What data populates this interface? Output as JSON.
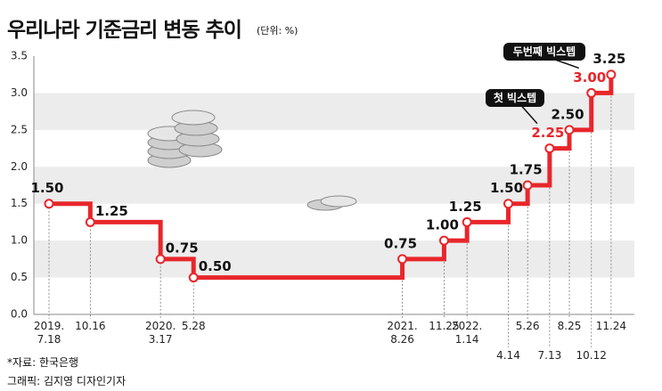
{
  "chart_data": {
    "type": "step-line",
    "title": "우리나라 기준금리 변동 추이",
    "subtitle": "(단위: %)",
    "source": "*자료: 한국은행",
    "credit": "그래픽: 김지영 디자인기자",
    "x": [
      "2019.\n7.18",
      "10.16",
      "2020.\n3.17",
      "5.28",
      "2021.\n8.26",
      "11.25",
      "2022.\n1.14",
      "4.14",
      "5.26",
      "7.13",
      "8.25",
      "10.12",
      "11.24"
    ],
    "series": [
      {
        "color": "#e8262b",
        "values": [
          1.5,
          1.25,
          0.75,
          0.5,
          0.75,
          1.0,
          1.25,
          1.5,
          1.75,
          2.25,
          2.5,
          3.0,
          3.25
        ],
        "value_labels": [
          "1.50",
          "1.25",
          "0.75",
          "0.50",
          "0.75",
          "1.00",
          "1.25",
          "1.50",
          "1.75",
          "2.25",
          "2.50",
          "3.00",
          "3.25"
        ]
      }
    ],
    "ylim": [
      0,
      3.5
    ],
    "yticks": [
      {
        "value": 0,
        "label": "0.0"
      },
      0.5,
      {
        "value": 1,
        "label": "1.0"
      },
      1.5,
      {
        "value": 2,
        "label": "2.0"
      },
      2.5,
      {
        "value": 3,
        "label": "3.0"
      },
      3.5
    ],
    "grid": true,
    "annotations": [
      {
        "text": "첫 빅스텝"
      },
      {
        "text": "두번째 빅스텝"
      }
    ]
  }
}
